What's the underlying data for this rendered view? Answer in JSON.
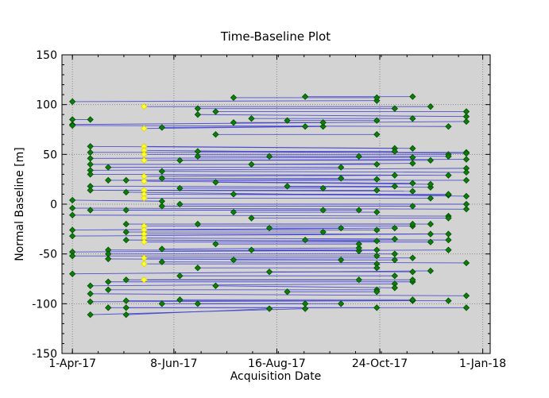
{
  "chart_data": {
    "type": "scatter",
    "title": "Time-Baseline Plot",
    "xlabel": "Acquisition Date",
    "ylabel": "Normal Baseline [m]",
    "x_ticks": [
      {
        "day": 0,
        "label": "1-Apr-17"
      },
      {
        "day": 68,
        "label": "8-Jun-17"
      },
      {
        "day": 137,
        "label": "16-Aug-17"
      },
      {
        "day": 206,
        "label": "24-Oct-17"
      },
      {
        "day": 275,
        "label": "1-Jan-18"
      }
    ],
    "x_range_days": [
      -7,
      280
    ],
    "y_ticks": [
      150,
      100,
      50,
      0,
      -50,
      -100,
      -150
    ],
    "ylim": [
      -150,
      150
    ],
    "grid": true,
    "colors": {
      "background": "#d3d3d3",
      "grid": "#8a8a8a",
      "line": "#3b3bd0",
      "point": "#0a7f0a",
      "point_edge": "#064a06",
      "reference": "#ffff33"
    },
    "acquisition_days": [
      0,
      12,
      24,
      36,
      48,
      60,
      72,
      84,
      96,
      108,
      120,
      132,
      144,
      156,
      168,
      180,
      192,
      204,
      216,
      228,
      240,
      252
    ],
    "reference_points": [
      {
        "day": 48,
        "baseline": 98
      },
      {
        "day": 48,
        "baseline": 76
      },
      {
        "day": 48,
        "baseline": 58
      },
      {
        "day": 48,
        "baseline": 54
      },
      {
        "day": 48,
        "baseline": 50
      },
      {
        "day": 48,
        "baseline": 44
      },
      {
        "day": 48,
        "baseline": 28
      },
      {
        "day": 48,
        "baseline": 23
      },
      {
        "day": 48,
        "baseline": 14
      },
      {
        "day": 48,
        "baseline": 10
      },
      {
        "day": 48,
        "baseline": 6
      },
      {
        "day": 48,
        "baseline": -22
      },
      {
        "day": 48,
        "baseline": -26
      },
      {
        "day": 48,
        "baseline": -30
      },
      {
        "day": 48,
        "baseline": -34
      },
      {
        "day": 48,
        "baseline": -38
      },
      {
        "day": 48,
        "baseline": -54
      },
      {
        "day": 48,
        "baseline": -60
      },
      {
        "day": 48,
        "baseline": -76
      }
    ],
    "connections": [
      {
        "day1": 0,
        "b1": 103,
        "day2": 204,
        "b2": 104
      },
      {
        "day1": 0,
        "b1": 85,
        "day2": 12,
        "b2": 85
      },
      {
        "day1": 0,
        "b1": 80,
        "day2": 264,
        "b2": 83
      },
      {
        "day1": 0,
        "b1": 79,
        "day2": 252,
        "b2": 78
      },
      {
        "day1": 0,
        "b1": 4,
        "day2": 60,
        "b2": 3
      },
      {
        "day1": 0,
        "b1": -4,
        "day2": 264,
        "b2": -5
      },
      {
        "day1": 0,
        "b1": -11,
        "day2": 252,
        "b2": -12
      },
      {
        "day1": 0,
        "b1": -26,
        "day2": 216,
        "b2": -24
      },
      {
        "day1": 0,
        "b1": -32,
        "day2": 240,
        "b2": -30
      },
      {
        "day1": 0,
        "b1": -48,
        "day2": 252,
        "b2": -46
      },
      {
        "day1": 0,
        "b1": -52,
        "day2": 204,
        "b2": -52
      },
      {
        "day1": 0,
        "b1": -70,
        "day2": 240,
        "b2": -67
      },
      {
        "day1": 12,
        "b1": 58,
        "day2": 216,
        "b2": 56
      },
      {
        "day1": 12,
        "b1": 52,
        "day2": 264,
        "b2": 52
      },
      {
        "day1": 12,
        "b1": 46,
        "day2": 228,
        "b2": 47
      },
      {
        "day1": 12,
        "b1": 40,
        "day2": 204,
        "b2": 40
      },
      {
        "day1": 12,
        "b1": 34,
        "day2": 264,
        "b2": 36
      },
      {
        "day1": 12,
        "b1": 30,
        "day2": 252,
        "b2": 29
      },
      {
        "day1": 12,
        "b1": 18,
        "day2": 240,
        "b2": 17
      },
      {
        "day1": 12,
        "b1": 14,
        "day2": 228,
        "b2": 13
      },
      {
        "day1": 12,
        "b1": -6,
        "day2": 192,
        "b2": -6
      },
      {
        "day1": 12,
        "b1": -82,
        "day2": 216,
        "b2": -80
      },
      {
        "day1": 12,
        "b1": -90,
        "day2": 264,
        "b2": -92
      },
      {
        "day1": 12,
        "b1": -98,
        "day2": 228,
        "b2": -97
      },
      {
        "day1": 12,
        "b1": -111,
        "day2": 156,
        "b2": -105
      },
      {
        "day1": 24,
        "b1": 37,
        "day2": 180,
        "b2": 37
      },
      {
        "day1": 24,
        "b1": 24,
        "day2": 264,
        "b2": 24
      },
      {
        "day1": 24,
        "b1": -46,
        "day2": 192,
        "b2": -47
      },
      {
        "day1": 24,
        "b1": -50,
        "day2": 216,
        "b2": -50
      },
      {
        "day1": 24,
        "b1": -55,
        "day2": 180,
        "b2": -56
      },
      {
        "day1": 24,
        "b1": -78,
        "day2": 228,
        "b2": -78
      },
      {
        "day1": 24,
        "b1": -86,
        "day2": 204,
        "b2": -86
      },
      {
        "day1": 24,
        "b1": -104,
        "day2": 264,
        "b2": -104
      },
      {
        "day1": 36,
        "b1": 24,
        "day2": 204,
        "b2": 25
      },
      {
        "day1": 36,
        "b1": 12,
        "day2": 264,
        "b2": 8
      },
      {
        "day1": 36,
        "b1": -6,
        "day2": 168,
        "b2": -6
      },
      {
        "day1": 36,
        "b1": -20,
        "day2": 240,
        "b2": -20
      },
      {
        "day1": 36,
        "b1": -28,
        "day2": 168,
        "b2": -28
      },
      {
        "day1": 36,
        "b1": -36,
        "day2": 204,
        "b2": -37
      },
      {
        "day1": 36,
        "b1": -76,
        "day2": 228,
        "b2": -76
      },
      {
        "day1": 36,
        "b1": -97,
        "day2": 252,
        "b2": -97
      },
      {
        "day1": 36,
        "b1": -104,
        "day2": 204,
        "b2": -104
      },
      {
        "day1": 36,
        "b1": -111,
        "day2": 132,
        "b2": -105
      },
      {
        "day1": 48,
        "b1": 98,
        "day2": 240,
        "b2": 98
      },
      {
        "day1": 48,
        "b1": 76,
        "day2": 168,
        "b2": 78
      },
      {
        "day1": 48,
        "b1": 58,
        "day2": 228,
        "b2": 56
      },
      {
        "day1": 48,
        "b1": 54,
        "day2": 264,
        "b2": 51
      },
      {
        "day1": 48,
        "b1": 50,
        "day2": 252,
        "b2": 50
      },
      {
        "day1": 48,
        "b1": 44,
        "day2": 264,
        "b2": 45
      },
      {
        "day1": 48,
        "b1": 28,
        "day2": 216,
        "b2": 29
      },
      {
        "day1": 48,
        "b1": 23,
        "day2": 228,
        "b2": 21
      },
      {
        "day1": 48,
        "b1": 14,
        "day2": 204,
        "b2": 14
      },
      {
        "day1": 48,
        "b1": 10,
        "day2": 252,
        "b2": 9
      },
      {
        "day1": 48,
        "b1": 6,
        "day2": 240,
        "b2": 6
      },
      {
        "day1": 48,
        "b1": -22,
        "day2": 228,
        "b2": -22
      },
      {
        "day1": 48,
        "b1": -26,
        "day2": 204,
        "b2": -26
      },
      {
        "day1": 48,
        "b1": -30,
        "day2": 252,
        "b2": -30
      },
      {
        "day1": 48,
        "b1": -34,
        "day2": 216,
        "b2": -35
      },
      {
        "day1": 48,
        "b1": -38,
        "day2": 240,
        "b2": -38
      },
      {
        "day1": 48,
        "b1": -54,
        "day2": 228,
        "b2": -54
      },
      {
        "day1": 48,
        "b1": -60,
        "day2": 204,
        "b2": -60
      },
      {
        "day1": 48,
        "b1": -76,
        "day2": 192,
        "b2": -76
      },
      {
        "day1": 60,
        "b1": 77,
        "day2": 156,
        "b2": 78
      },
      {
        "day1": 60,
        "b1": 33,
        "day2": 264,
        "b2": 32
      },
      {
        "day1": 60,
        "b1": 26,
        "day2": 180,
        "b2": 26
      },
      {
        "day1": 60,
        "b1": -2,
        "day2": 228,
        "b2": -2
      },
      {
        "day1": 60,
        "b1": -45,
        "day2": 192,
        "b2": -44
      },
      {
        "day1": 60,
        "b1": -58,
        "day2": 264,
        "b2": -59
      },
      {
        "day1": 60,
        "b1": -100,
        "day2": 180,
        "b2": -100
      },
      {
        "day1": 72,
        "b1": 44,
        "day2": 240,
        "b2": 44
      },
      {
        "day1": 72,
        "b1": 16,
        "day2": 168,
        "b2": 16
      },
      {
        "day1": 72,
        "b1": 0,
        "day2": 264,
        "b2": 0
      },
      {
        "day1": 72,
        "b1": -72,
        "day2": 216,
        "b2": -72
      },
      {
        "day1": 72,
        "b1": -96,
        "day2": 228,
        "b2": -96
      },
      {
        "day1": 84,
        "b1": 96,
        "day2": 216,
        "b2": 96
      },
      {
        "day1": 84,
        "b1": 90,
        "day2": 264,
        "b2": 88
      },
      {
        "day1": 84,
        "b1": 53,
        "day2": 216,
        "b2": 53
      },
      {
        "day1": 84,
        "b1": 48,
        "day2": 192,
        "b2": 48
      },
      {
        "day1": 84,
        "b1": -20,
        "day2": 228,
        "b2": -20
      },
      {
        "day1": 84,
        "b1": -64,
        "day2": 204,
        "b2": -64
      },
      {
        "day1": 84,
        "b1": -100,
        "day2": 156,
        "b2": -100
      },
      {
        "day1": 96,
        "b1": 93,
        "day2": 264,
        "b2": 93
      },
      {
        "day1": 96,
        "b1": 70,
        "day2": 204,
        "b2": 70
      },
      {
        "day1": 96,
        "b1": 22,
        "day2": 240,
        "b2": 20
      },
      {
        "day1": 96,
        "b1": -40,
        "day2": 192,
        "b2": -40
      },
      {
        "day1": 96,
        "b1": -82,
        "day2": 216,
        "b2": -84
      },
      {
        "day1": 108,
        "b1": 107,
        "day2": 204,
        "b2": 107
      },
      {
        "day1": 108,
        "b1": 82,
        "day2": 168,
        "b2": 82
      },
      {
        "day1": 108,
        "b1": 10,
        "day2": 252,
        "b2": 10
      },
      {
        "day1": 108,
        "b1": -8,
        "day2": 204,
        "b2": -8
      },
      {
        "day1": 108,
        "b1": -56,
        "day2": 216,
        "b2": -56
      },
      {
        "day1": 120,
        "b1": 86,
        "day2": 228,
        "b2": 86
      },
      {
        "day1": 120,
        "b1": 40,
        "day2": 228,
        "b2": 41
      },
      {
        "day1": 120,
        "b1": -14,
        "day2": 252,
        "b2": -14
      },
      {
        "day1": 120,
        "b1": -46,
        "day2": 204,
        "b2": -46
      },
      {
        "day1": 132,
        "b1": 48,
        "day2": 252,
        "b2": 48
      },
      {
        "day1": 132,
        "b1": -24,
        "day2": 180,
        "b2": -24
      },
      {
        "day1": 132,
        "b1": -68,
        "day2": 228,
        "b2": -68
      },
      {
        "day1": 144,
        "b1": 84,
        "day2": 204,
        "b2": 84
      },
      {
        "day1": 144,
        "b1": 18,
        "day2": 216,
        "b2": 18
      },
      {
        "day1": 144,
        "b1": -88,
        "day2": 204,
        "b2": -88
      },
      {
        "day1": 156,
        "b1": 108,
        "day2": 228,
        "b2": 108
      },
      {
        "day1": 156,
        "b1": -36,
        "day2": 252,
        "b2": -36
      }
    ]
  }
}
